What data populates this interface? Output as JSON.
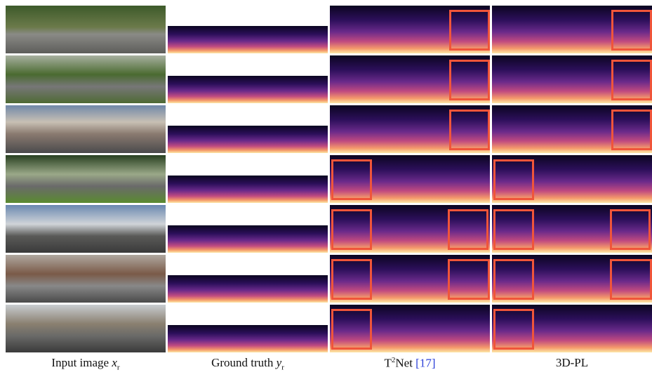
{
  "columns": [
    {
      "text": "Input image ",
      "math": "x",
      "sub": "r"
    },
    {
      "text": "Ground truth ",
      "math": "y",
      "sub": "r"
    },
    {
      "text": "T",
      "sup": "2",
      "after": "Net ",
      "cite": "[17]"
    },
    {
      "text": "3D-PL"
    }
  ]
}
